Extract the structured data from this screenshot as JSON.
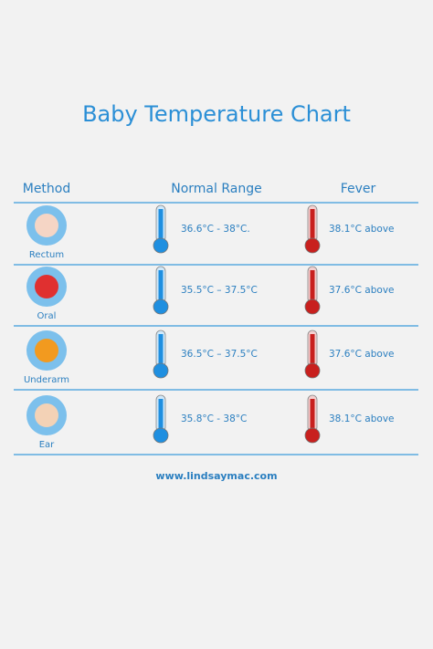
{
  "header": {
    "title": "Baby Temperature Chart"
  },
  "table": {
    "columns": [
      "Method",
      "Normal Range",
      "Fever"
    ],
    "rows": [
      [
        "Rectum",
        "36.6°C - 38°C.",
        "38.1°C above"
      ],
      [
        "Oral",
        "35.5°C – 37.5°C",
        "37.6°C above"
      ],
      [
        "Underarm",
        "36.5°C – 37.5°C",
        "37.6°C above"
      ],
      [
        "Ear",
        "35.8°C - 38°C",
        "38.1°C above"
      ]
    ]
  },
  "footer": {
    "url": "www.lindsaymac.com"
  }
}
